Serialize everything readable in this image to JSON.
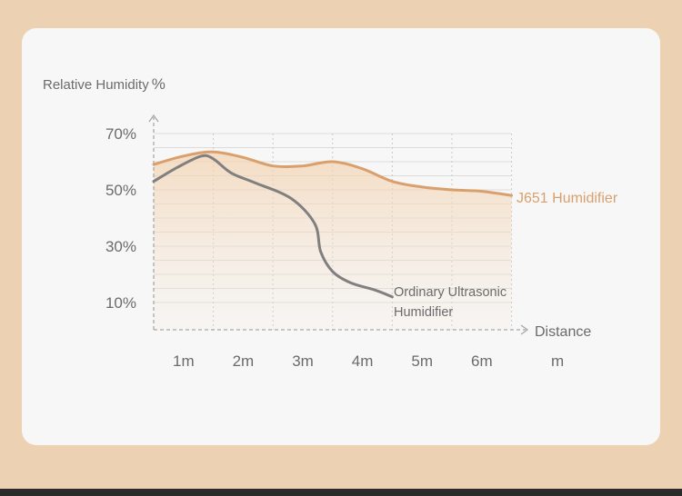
{
  "chart_data": {
    "type": "line",
    "ylabel": "Relative Humidity",
    "yunit": "%",
    "xlabel": "Distance",
    "xunit": "m",
    "x_ticks": [
      "1m",
      "2m",
      "3m",
      "4m",
      "5m",
      "6m"
    ],
    "y_ticks": [
      "10%",
      "30%",
      "50%",
      "70%"
    ],
    "series": [
      {
        "name": "J651 Humidifier",
        "color": "#d9a06e",
        "x": [
          0,
          0.5,
          1.0,
          1.5,
          2.0,
          2.5,
          3.0,
          3.5,
          4.0,
          4.5,
          5.0,
          5.5,
          6.0
        ],
        "y": [
          59,
          62,
          63.5,
          61.5,
          58.5,
          58.5,
          60,
          57.5,
          53,
          51,
          50,
          49.5,
          48
        ]
      },
      {
        "name": "Ordinary Ultrasonic Humidifier",
        "color": "#808080",
        "x": [
          0,
          0.4,
          0.8,
          1.0,
          1.3,
          1.7,
          2.3,
          2.7,
          2.8,
          3.0,
          3.3,
          3.7,
          4.0
        ],
        "y": [
          53,
          58,
          62,
          61,
          56,
          52.5,
          47,
          38,
          28,
          21,
          17,
          14.5,
          12
        ]
      }
    ],
    "legend_labels": {
      "j651": "J651 Humidifier",
      "ordinary": [
        "Ordinary Ultrasonic",
        "Humidifier"
      ]
    }
  },
  "colors": {
    "background": "#ecd2b3",
    "card": "#f7f7f7",
    "accent": "#d9a06e",
    "gray_line": "#808080"
  }
}
